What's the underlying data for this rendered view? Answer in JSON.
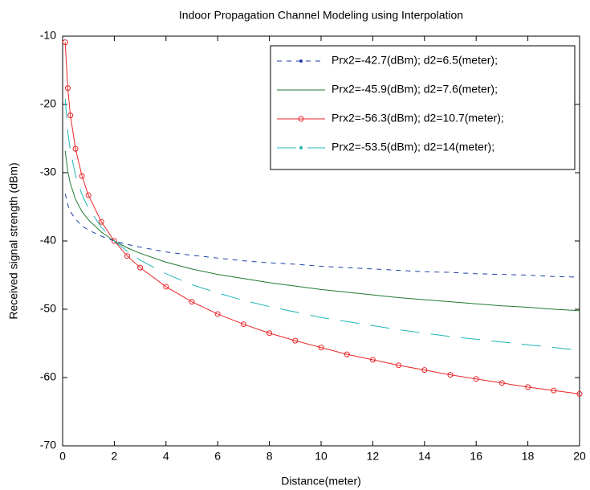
{
  "chart_data": {
    "type": "line",
    "title": "Indoor Propagation Channel Modeling using Interpolation",
    "x_label": "Distance(meter)",
    "y_label": "Received signal strength (dBm)",
    "x": [
      0.1,
      0.2,
      0.3,
      0.5,
      0.75,
      1,
      1.5,
      2,
      2.5,
      3,
      4,
      5,
      6,
      7,
      8,
      9,
      10,
      11,
      12,
      13,
      14,
      15,
      16,
      17,
      18,
      19,
      20
    ],
    "xlim": [
      0,
      20
    ],
    "xticks": [
      0,
      2,
      4,
      6,
      8,
      10,
      12,
      14,
      16,
      18,
      20
    ],
    "ylim": [
      -70,
      -10
    ],
    "yticks": [
      -70,
      -60,
      -50,
      -40,
      -30,
      -20,
      -10
    ],
    "grid": false,
    "legend": "upper right",
    "series": [
      {
        "name": "Prx2=-42.7(dBm); d2=6.5(meter);",
        "color": "#1f3fa8",
        "dash": "6,6",
        "marker": "dot",
        "values": [
          -33.1,
          -34.7,
          -35.7,
          -36.8,
          -37.8,
          -38.4,
          -39.3,
          -40,
          -40.5,
          -40.9,
          -41.6,
          -42.1,
          -42.5,
          -42.9,
          -43.2,
          -43.4,
          -43.7,
          -43.9,
          -44.1,
          -44.3,
          -44.5,
          -44.6,
          -44.8,
          -44.9,
          -45.0,
          -45.2,
          -45.3
        ]
      },
      {
        "name": "Prx2=-45.9(dBm); d2=7.6(meter);",
        "color": "#1e7a2e",
        "dash": "none",
        "marker": "none",
        "values": [
          -26.8,
          -29.8,
          -31.6,
          -33.9,
          -35.7,
          -36.9,
          -38.7,
          -40,
          -41.0,
          -41.8,
          -43.1,
          -44.1,
          -44.9,
          -45.5,
          -46.1,
          -46.6,
          -47.1,
          -47.5,
          -47.9,
          -48.3,
          -48.6,
          -48.9,
          -49.2,
          -49.5,
          -49.7,
          -50.0,
          -50.2
        ]
      },
      {
        "name": "Prx2=-56.3(dBm); d2=10.7(meter);",
        "color": "#e8262a",
        "dash": "none",
        "marker": "circle",
        "values": [
          -10.9,
          -17.6,
          -21.6,
          -26.5,
          -30.5,
          -33.3,
          -37.2,
          -40,
          -42.2,
          -43.9,
          -46.7,
          -48.9,
          -50.7,
          -52.2,
          -53.5,
          -54.6,
          -55.6,
          -56.6,
          -57.4,
          -58.2,
          -58.9,
          -59.6,
          -60.2,
          -60.8,
          -61.4,
          -61.9,
          -62.4
        ]
      },
      {
        "name": "Prx2=-53.5(dBm); d2=14(meter);",
        "color": "#1fb5b5",
        "dash": "24,14",
        "marker": "dot",
        "values": [
          -19.2,
          -24.0,
          -26.8,
          -30.4,
          -33.2,
          -35.2,
          -38.0,
          -40,
          -41.5,
          -42.8,
          -44.8,
          -46.4,
          -47.6,
          -48.7,
          -49.6,
          -50.4,
          -51.2,
          -51.8,
          -52.4,
          -53.0,
          -53.5,
          -54.0,
          -54.4,
          -54.8,
          -55.2,
          -55.6,
          -56.0
        ]
      }
    ]
  }
}
